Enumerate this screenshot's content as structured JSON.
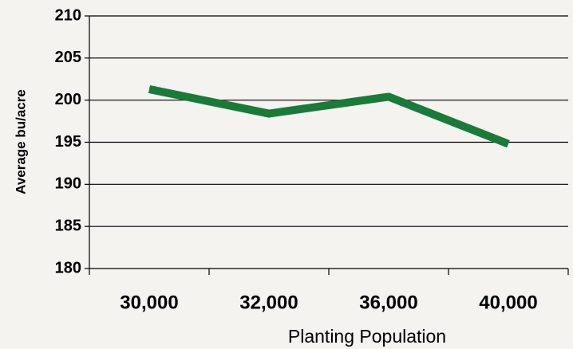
{
  "chart_data": {
    "type": "line",
    "x_label": "Planting Population",
    "y_label": "Average bu/acre",
    "categories": [
      "30,000",
      "32,000",
      "36,000",
      "40,000"
    ],
    "series": [
      {
        "name": "Average bu/acre",
        "color": "#1a7a3a",
        "values": [
          201.3,
          198.4,
          200.4,
          194.8
        ]
      }
    ],
    "ylim": [
      180,
      210
    ],
    "yticks": [
      180,
      185,
      190,
      195,
      200,
      205,
      210
    ],
    "grid": true
  }
}
